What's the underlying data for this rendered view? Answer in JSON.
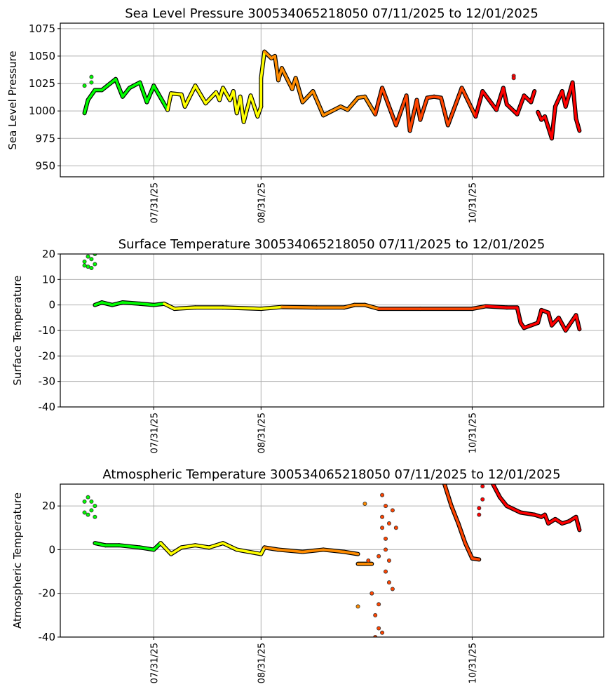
{
  "month_colors": {
    "07": "#00ff00",
    "08": "#ffff00",
    "09": "#ff8c00",
    "10": "#ff4500",
    "11": "#ff0000",
    "12": "#8b4513"
  },
  "chart_data": [
    {
      "type": "scatter",
      "title": "Sea Level Pressure 300534065218050  07/11/2025 to 12/01/2025",
      "xlabel": "",
      "ylabel": "Sea Level Pressure",
      "ylim": [
        940,
        1080
      ],
      "xlim": [
        "2025-07-04",
        "2025-12-08"
      ],
      "yticks": [
        950,
        975,
        1000,
        1025,
        1050,
        1075
      ],
      "xticks": [
        {
          "date": "2025-07-31",
          "label": "07/31/25"
        },
        {
          "date": "2025-08-31",
          "label": "08/31/25"
        },
        {
          "date": "2025-10-31",
          "label": "10/31/25"
        }
      ],
      "grid": true,
      "segments": [
        {
          "style": "points",
          "points": [
            [
              "2025-07-11",
              1023
            ],
            [
              "2025-07-13",
              1031
            ],
            [
              "2025-07-13",
              1026
            ]
          ]
        },
        {
          "style": "line",
          "points": [
            [
              "2025-07-11",
              998
            ],
            [
              "2025-07-12",
              1010
            ],
            [
              "2025-07-14",
              1019
            ],
            [
              "2025-07-16",
              1019
            ],
            [
              "2025-07-20",
              1029
            ],
            [
              "2025-07-22",
              1013
            ],
            [
              "2025-07-24",
              1021
            ],
            [
              "2025-07-27",
              1026
            ],
            [
              "2025-07-29",
              1008
            ],
            [
              "2025-07-31",
              1023
            ],
            [
              "2025-08-04",
              1001
            ],
            [
              "2025-08-05",
              1016
            ],
            [
              "2025-08-08",
              1015
            ],
            [
              "2025-08-09",
              1004
            ],
            [
              "2025-08-12",
              1023
            ],
            [
              "2025-08-15",
              1007
            ],
            [
              "2025-08-18",
              1017
            ],
            [
              "2025-08-19",
              1010
            ],
            [
              "2025-08-20",
              1021
            ],
            [
              "2025-08-22",
              1010
            ],
            [
              "2025-08-23",
              1018
            ],
            [
              "2025-08-24",
              998
            ],
            [
              "2025-08-25",
              1013
            ],
            [
              "2025-08-26",
              990
            ],
            [
              "2025-08-28",
              1014
            ],
            [
              "2025-08-30",
              995
            ],
            [
              "2025-08-31",
              1004
            ],
            [
              "2025-08-31",
              1030
            ],
            [
              "2025-09-01",
              1054
            ],
            [
              "2025-09-03",
              1048
            ],
            [
              "2025-09-04",
              1050
            ],
            [
              "2025-09-05",
              1028
            ],
            [
              "2025-09-06",
              1039
            ],
            [
              "2025-09-09",
              1020
            ],
            [
              "2025-09-10",
              1030
            ],
            [
              "2025-09-12",
              1008
            ],
            [
              "2025-09-15",
              1018
            ],
            [
              "2025-09-18",
              996
            ],
            [
              "2025-09-23",
              1004
            ],
            [
              "2025-09-25",
              1001
            ],
            [
              "2025-09-28",
              1012
            ],
            [
              "2025-09-30",
              1013
            ],
            [
              "2025-10-03",
              997
            ],
            [
              "2025-10-05",
              1021
            ],
            [
              "2025-10-09",
              987
            ],
            [
              "2025-10-12",
              1014
            ],
            [
              "2025-10-13",
              982
            ],
            [
              "2025-10-15",
              1010
            ],
            [
              "2025-10-16",
              992
            ],
            [
              "2025-10-18",
              1012
            ],
            [
              "2025-10-20",
              1013
            ],
            [
              "2025-10-22",
              1012
            ],
            [
              "2025-10-24",
              987
            ],
            [
              "2025-10-28",
              1021
            ],
            [
              "2025-11-01",
              995
            ],
            [
              "2025-11-03",
              1018
            ],
            [
              "2025-11-07",
              1001
            ],
            [
              "2025-11-09",
              1021
            ],
            [
              "2025-11-10",
              1006
            ],
            [
              "2025-11-13",
              997
            ],
            [
              "2025-11-15",
              1014
            ],
            [
              "2025-11-17",
              1008
            ],
            [
              "2025-11-18",
              1018
            ]
          ]
        },
        {
          "style": "points",
          "points": [
            [
              "2025-11-12",
              1032
            ],
            [
              "2025-11-12",
              1030
            ]
          ]
        },
        {
          "style": "line",
          "points": [
            [
              "2025-11-19",
              999
            ],
            [
              "2025-11-20",
              992
            ],
            [
              "2025-11-21",
              995
            ],
            [
              "2025-11-23",
              975
            ],
            [
              "2025-11-24",
              1004
            ],
            [
              "2025-11-26",
              1018
            ],
            [
              "2025-11-27",
              1004
            ],
            [
              "2025-11-29",
              1026
            ],
            [
              "2025-11-30",
              993
            ],
            [
              "2025-12-01",
              982
            ]
          ]
        }
      ]
    },
    {
      "type": "scatter",
      "title": "Surface Temperature 300534065218050  07/11/2025 to 12/01/2025",
      "xlabel": "",
      "ylabel": "Surface Temperature",
      "ylim": [
        -40,
        20
      ],
      "xlim": [
        "2025-07-04",
        "2025-12-08"
      ],
      "yticks": [
        -40,
        -30,
        -20,
        -10,
        0,
        10,
        20
      ],
      "xticks": [
        {
          "date": "2025-07-31",
          "label": "07/31/25"
        },
        {
          "date": "2025-08-31",
          "label": "08/31/25"
        },
        {
          "date": "2025-10-31",
          "label": "10/31/25"
        }
      ],
      "grid": true,
      "segments": [
        {
          "style": "points",
          "points": [
            [
              "2025-07-11",
              17
            ],
            [
              "2025-07-12",
              19
            ],
            [
              "2025-07-12",
              15
            ],
            [
              "2025-07-13",
              18
            ],
            [
              "2025-07-14",
              16
            ],
            [
              "2025-07-14",
              20
            ],
            [
              "2025-07-13",
              14.5
            ],
            [
              "2025-07-11",
              15.5
            ]
          ]
        },
        {
          "style": "line",
          "points": [
            [
              "2025-07-14",
              0
            ],
            [
              "2025-07-16",
              1
            ],
            [
              "2025-07-19",
              0
            ],
            [
              "2025-07-22",
              1
            ],
            [
              "2025-07-27",
              0.5
            ],
            [
              "2025-07-31",
              0
            ],
            [
              "2025-08-03",
              0.5
            ],
            [
              "2025-08-06",
              -1.5
            ],
            [
              "2025-08-12",
              -1
            ],
            [
              "2025-08-20",
              -1
            ],
            [
              "2025-08-31",
              -1.5
            ],
            [
              "2025-09-06",
              -0.8
            ],
            [
              "2025-09-16",
              -1
            ],
            [
              "2025-09-24",
              -1
            ],
            [
              "2025-09-27",
              0
            ],
            [
              "2025-09-30",
              0
            ],
            [
              "2025-10-04",
              -1.5
            ],
            [
              "2025-10-16",
              -1.5
            ],
            [
              "2025-10-31",
              -1.5
            ],
            [
              "2025-11-04",
              -0.5
            ],
            [
              "2025-11-10",
              -1
            ],
            [
              "2025-11-13",
              -1
            ],
            [
              "2025-11-14",
              -7
            ],
            [
              "2025-11-15",
              -9
            ],
            [
              "2025-11-17",
              -8
            ],
            [
              "2025-11-19",
              -7
            ],
            [
              "2025-11-20",
              -2
            ],
            [
              "2025-11-22",
              -3
            ],
            [
              "2025-11-23",
              -8
            ],
            [
              "2025-11-25",
              -5
            ],
            [
              "2025-11-27",
              -10
            ],
            [
              "2025-11-29",
              -6
            ],
            [
              "2025-11-30",
              -4
            ],
            [
              "2025-12-01",
              -9.5
            ]
          ]
        }
      ]
    },
    {
      "type": "scatter",
      "title": "Atmospheric Temperature 300534065218050  07/11/2025 to 12/01/2025",
      "xlabel": "",
      "ylabel": "Atmospheric Temperature",
      "ylim": [
        -40,
        30
      ],
      "xlim": [
        "2025-07-04",
        "2025-12-08"
      ],
      "yticks": [
        -40,
        -20,
        0,
        20
      ],
      "xticks": [
        {
          "date": "2025-07-31",
          "label": "07/31/25"
        },
        {
          "date": "2025-08-31",
          "label": "08/31/25"
        },
        {
          "date": "2025-10-31",
          "label": "10/31/25"
        }
      ],
      "grid": true,
      "segments": [
        {
          "style": "points",
          "points": [
            [
              "2025-07-11",
              22
            ],
            [
              "2025-07-12",
              16
            ],
            [
              "2025-07-12",
              24
            ],
            [
              "2025-07-13",
              18
            ],
            [
              "2025-07-14",
              20
            ],
            [
              "2025-07-14",
              15
            ],
            [
              "2025-07-11",
              17
            ],
            [
              "2025-07-13",
              22
            ]
          ]
        },
        {
          "style": "line",
          "points": [
            [
              "2025-07-14",
              3
            ],
            [
              "2025-07-17",
              2
            ],
            [
              "2025-07-21",
              2
            ],
            [
              "2025-07-27",
              1
            ],
            [
              "2025-07-31",
              0
            ],
            [
              "2025-08-02",
              3
            ],
            [
              "2025-08-05",
              -2
            ],
            [
              "2025-08-08",
              1
            ],
            [
              "2025-08-12",
              2
            ],
            [
              "2025-08-16",
              1
            ],
            [
              "2025-08-20",
              3
            ],
            [
              "2025-08-24",
              0
            ],
            [
              "2025-08-31",
              -2
            ],
            [
              "2025-09-01",
              1
            ],
            [
              "2025-09-05",
              0
            ],
            [
              "2025-09-12",
              -1
            ],
            [
              "2025-09-18",
              0
            ],
            [
              "2025-09-24",
              -1
            ],
            [
              "2025-09-28",
              -2
            ]
          ]
        },
        {
          "style": "line",
          "points": [
            [
              "2025-09-28",
              -6.5
            ],
            [
              "2025-10-02",
              -6.5
            ]
          ]
        },
        {
          "style": "points",
          "points": [
            [
              "2025-09-28",
              -26
            ],
            [
              "2025-09-30",
              21
            ],
            [
              "2025-10-01",
              -5
            ],
            [
              "2025-10-02",
              -20
            ],
            [
              "2025-10-03",
              -30
            ],
            [
              "2025-10-03",
              -40
            ],
            [
              "2025-10-04",
              -36
            ],
            [
              "2025-10-04",
              -3
            ],
            [
              "2025-10-05",
              25
            ],
            [
              "2025-10-05",
              10
            ],
            [
              "2025-10-05",
              15
            ],
            [
              "2025-10-06",
              0
            ],
            [
              "2025-10-06",
              -10
            ],
            [
              "2025-10-06",
              20
            ],
            [
              "2025-10-06",
              5
            ],
            [
              "2025-10-07",
              -5
            ],
            [
              "2025-10-07",
              12
            ],
            [
              "2025-10-07",
              -15
            ],
            [
              "2025-10-08",
              18
            ],
            [
              "2025-10-08",
              -18
            ],
            [
              "2025-10-09",
              10
            ],
            [
              "2025-10-04",
              -25
            ],
            [
              "2025-10-05",
              -38
            ]
          ]
        },
        {
          "style": "line",
          "points": [
            [
              "2025-10-23",
              30
            ],
            [
              "2025-10-25",
              20
            ],
            [
              "2025-10-27",
              12
            ],
            [
              "2025-10-29",
              3
            ],
            [
              "2025-10-31",
              -4
            ],
            [
              "2025-11-02",
              -4.5
            ]
          ]
        },
        {
          "style": "points",
          "points": [
            [
              "2025-11-02",
              16
            ],
            [
              "2025-11-02",
              19
            ],
            [
              "2025-11-03",
              23
            ],
            [
              "2025-11-03",
              29
            ]
          ]
        },
        {
          "style": "line",
          "points": [
            [
              "2025-11-06",
              30
            ],
            [
              "2025-11-08",
              24
            ],
            [
              "2025-11-10",
              20
            ],
            [
              "2025-11-14",
              17
            ],
            [
              "2025-11-18",
              16
            ],
            [
              "2025-11-20",
              15
            ],
            [
              "2025-11-21",
              16
            ],
            [
              "2025-11-22",
              12
            ],
            [
              "2025-11-24",
              14
            ],
            [
              "2025-11-26",
              12
            ],
            [
              "2025-11-28",
              13
            ],
            [
              "2025-11-30",
              15
            ],
            [
              "2025-12-01",
              9
            ]
          ]
        }
      ]
    }
  ]
}
